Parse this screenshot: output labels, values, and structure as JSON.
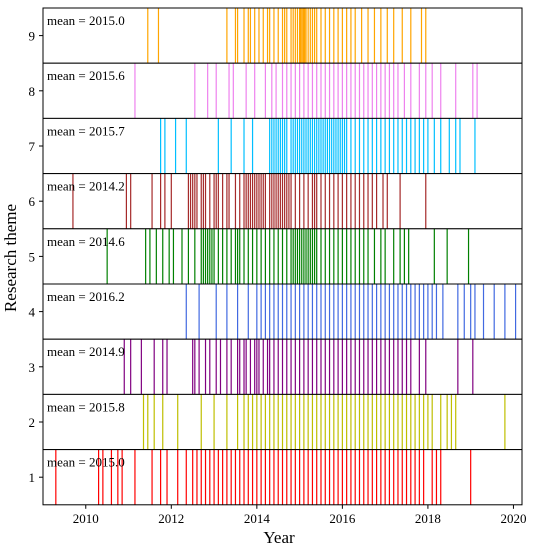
{
  "chart_data": {
    "type": "event-strip",
    "xlabel": "Year",
    "ylabel": "Research theme",
    "xlim": [
      2009.0,
      2020.2
    ],
    "xticks": [
      2010,
      2012,
      2014,
      2016,
      2018,
      2020
    ],
    "panels": [
      {
        "theme": "9",
        "mean_label": "mean = 2015.0",
        "color": "#FFA500",
        "events": [
          2011.45,
          2011.7,
          2013.3,
          2013.5,
          2013.55,
          2013.7,
          2013.8,
          2013.85,
          2013.95,
          2014.05,
          2014.15,
          2014.25,
          2014.3,
          2014.4,
          2014.5,
          2014.6,
          2014.65,
          2014.7,
          2014.8,
          2014.85,
          2014.9,
          2014.95,
          2015.0,
          2015.02,
          2015.05,
          2015.08,
          2015.1,
          2015.12,
          2015.15,
          2015.2,
          2015.25,
          2015.3,
          2015.35,
          2015.4,
          2015.5,
          2015.6,
          2015.7,
          2015.8,
          2015.9,
          2016.0,
          2016.1,
          2016.2,
          2016.3,
          2016.45,
          2016.6,
          2016.75,
          2016.9,
          2017.05,
          2017.2,
          2017.4,
          2017.6,
          2017.85,
          2017.95
        ]
      },
      {
        "theme": "8",
        "mean_label": "mean = 2015.6",
        "color": "#EE82EE",
        "events": [
          2011.15,
          2012.55,
          2012.85,
          2013.05,
          2013.35,
          2013.45,
          2013.75,
          2013.95,
          2014.2,
          2014.35,
          2014.45,
          2014.6,
          2014.7,
          2014.8,
          2014.9,
          2015.0,
          2015.1,
          2015.2,
          2015.3,
          2015.4,
          2015.5,
          2015.6,
          2015.7,
          2015.8,
          2015.9,
          2016.0,
          2016.1,
          2016.2,
          2016.3,
          2016.4,
          2016.5,
          2016.6,
          2016.7,
          2016.8,
          2016.9,
          2017.0,
          2017.1,
          2017.2,
          2017.3,
          2017.45,
          2017.6,
          2017.8,
          2017.95,
          2018.1,
          2018.3,
          2018.65,
          2019.05,
          2019.15
        ]
      },
      {
        "theme": "7",
        "mean_label": "mean = 2015.7",
        "color": "#00BFFF",
        "events": [
          2011.75,
          2011.85,
          2012.1,
          2012.35,
          2013.1,
          2013.4,
          2013.7,
          2013.9,
          2014.3,
          2014.35,
          2014.4,
          2014.45,
          2014.5,
          2014.55,
          2014.6,
          2014.65,
          2014.7,
          2014.8,
          2014.85,
          2014.9,
          2014.95,
          2015.0,
          2015.05,
          2015.1,
          2015.15,
          2015.2,
          2015.25,
          2015.3,
          2015.35,
          2015.4,
          2015.45,
          2015.5,
          2015.55,
          2015.6,
          2015.65,
          2015.7,
          2015.75,
          2015.8,
          2015.85,
          2015.9,
          2015.95,
          2016.0,
          2016.05,
          2016.1,
          2016.2,
          2016.3,
          2016.4,
          2016.5,
          2016.6,
          2016.7,
          2016.8,
          2016.9,
          2017.0,
          2017.1,
          2017.2,
          2017.3,
          2017.4,
          2017.5,
          2017.6,
          2017.7,
          2017.8,
          2017.9,
          2018.0,
          2018.15,
          2018.3,
          2018.5,
          2018.65,
          2018.75,
          2019.1
        ]
      },
      {
        "theme": "6",
        "mean_label": "mean = 2014.2",
        "color": "#A52A2A",
        "events": [
          2009.7,
          2010.95,
          2011.05,
          2011.55,
          2011.75,
          2011.85,
          2012.0,
          2012.4,
          2012.45,
          2012.5,
          2012.55,
          2012.6,
          2012.7,
          2012.75,
          2012.8,
          2012.9,
          2013.0,
          2013.05,
          2013.1,
          2013.2,
          2013.3,
          2013.35,
          2013.5,
          2013.6,
          2013.7,
          2013.75,
          2013.8,
          2013.85,
          2013.9,
          2013.95,
          2014.0,
          2014.05,
          2014.1,
          2014.15,
          2014.2,
          2014.3,
          2014.35,
          2014.4,
          2014.45,
          2014.5,
          2014.55,
          2014.6,
          2014.65,
          2014.7,
          2014.75,
          2014.8,
          2014.9,
          2015.0,
          2015.1,
          2015.2,
          2015.3,
          2015.35,
          2015.4,
          2015.5,
          2015.6,
          2015.7,
          2015.8,
          2015.9,
          2016.0,
          2016.1,
          2016.2,
          2016.3,
          2016.4,
          2016.5,
          2016.6,
          2016.7,
          2016.8,
          2016.95,
          2017.05,
          2017.35,
          2017.95
        ]
      },
      {
        "theme": "5",
        "mean_label": "mean = 2014.6",
        "color": "#008000",
        "events": [
          2010.5,
          2011.4,
          2011.5,
          2011.65,
          2011.8,
          2011.95,
          2012.05,
          2012.25,
          2012.4,
          2012.55,
          2012.7,
          2012.75,
          2012.8,
          2012.85,
          2012.9,
          2012.95,
          2013.0,
          2013.1,
          2013.2,
          2013.3,
          2013.4,
          2013.5,
          2013.55,
          2013.6,
          2013.7,
          2013.8,
          2013.9,
          2014.0,
          2014.1,
          2014.2,
          2014.3,
          2014.4,
          2014.5,
          2014.6,
          2014.7,
          2014.8,
          2014.85,
          2014.9,
          2014.95,
          2015.0,
          2015.05,
          2015.1,
          2015.15,
          2015.2,
          2015.25,
          2015.3,
          2015.35,
          2015.4,
          2015.5,
          2015.6,
          2015.7,
          2015.8,
          2015.9,
          2016.0,
          2016.1,
          2016.2,
          2016.3,
          2016.4,
          2016.5,
          2016.6,
          2016.75,
          2016.9,
          2017.0,
          2017.2,
          2017.35,
          2017.45,
          2017.55,
          2018.15,
          2018.45,
          2018.95
        ]
      },
      {
        "theme": "4",
        "mean_label": "mean = 2016.2",
        "color": "#4169E1",
        "events": [
          2012.35,
          2012.65,
          2013.05,
          2013.3,
          2013.55,
          2013.8,
          2014.0,
          2014.1,
          2014.2,
          2014.3,
          2014.4,
          2014.5,
          2014.6,
          2014.7,
          2014.8,
          2014.9,
          2015.0,
          2015.1,
          2015.2,
          2015.3,
          2015.4,
          2015.5,
          2015.6,
          2015.7,
          2015.8,
          2015.9,
          2016.0,
          2016.1,
          2016.2,
          2016.3,
          2016.4,
          2016.5,
          2016.6,
          2016.7,
          2016.8,
          2016.9,
          2017.0,
          2017.1,
          2017.2,
          2017.3,
          2017.4,
          2017.5,
          2017.6,
          2017.7,
          2017.8,
          2017.9,
          2018.0,
          2018.1,
          2018.2,
          2018.35,
          2018.7,
          2018.85,
          2019.0,
          2019.1,
          2019.3,
          2019.55,
          2019.8,
          2020.05
        ]
      },
      {
        "theme": "3",
        "mean_label": "mean = 2014.9",
        "color": "#800080",
        "events": [
          2010.9,
          2011.05,
          2011.3,
          2011.6,
          2011.8,
          2011.9,
          2012.5,
          2012.55,
          2012.65,
          2012.8,
          2012.9,
          2013.05,
          2013.15,
          2013.3,
          2013.4,
          2013.55,
          2013.6,
          2013.7,
          2013.75,
          2013.85,
          2013.95,
          2014.0,
          2014.05,
          2014.15,
          2014.25,
          2014.3,
          2014.4,
          2014.5,
          2014.6,
          2014.7,
          2014.8,
          2014.9,
          2015.0,
          2015.1,
          2015.2,
          2015.3,
          2015.4,
          2015.5,
          2015.6,
          2015.7,
          2015.8,
          2015.9,
          2016.0,
          2016.1,
          2016.2,
          2016.3,
          2016.4,
          2016.5,
          2016.6,
          2016.7,
          2016.8,
          2016.9,
          2017.0,
          2017.1,
          2017.2,
          2017.3,
          2017.4,
          2017.5,
          2017.6,
          2017.8,
          2017.95,
          2018.7,
          2019.05
        ]
      },
      {
        "theme": "2",
        "mean_label": "mean = 2015.8",
        "color": "#BFBF00",
        "events": [
          2011.35,
          2011.45,
          2011.6,
          2011.8,
          2012.15,
          2012.7,
          2013.0,
          2013.3,
          2013.55,
          2013.7,
          2013.8,
          2013.9,
          2014.0,
          2014.1,
          2014.2,
          2014.3,
          2014.4,
          2014.5,
          2014.6,
          2014.7,
          2014.8,
          2014.9,
          2015.0,
          2015.1,
          2015.2,
          2015.3,
          2015.4,
          2015.5,
          2015.6,
          2015.7,
          2015.8,
          2015.9,
          2016.0,
          2016.1,
          2016.2,
          2016.3,
          2016.4,
          2016.5,
          2016.6,
          2016.7,
          2016.8,
          2016.9,
          2017.0,
          2017.1,
          2017.2,
          2017.3,
          2017.4,
          2017.5,
          2017.6,
          2017.7,
          2017.8,
          2017.9,
          2018.0,
          2018.1,
          2018.3,
          2018.45,
          2018.55,
          2018.65,
          2019.8
        ]
      },
      {
        "theme": "1",
        "mean_label": "mean = 2015.0",
        "color": "#FF0000",
        "events": [
          2009.3,
          2010.3,
          2010.4,
          2010.6,
          2010.75,
          2010.85,
          2011.15,
          2011.55,
          2011.75,
          2011.9,
          2012.15,
          2012.35,
          2012.5,
          2012.6,
          2012.7,
          2012.8,
          2012.9,
          2013.0,
          2013.1,
          2013.2,
          2013.3,
          2013.4,
          2013.5,
          2013.6,
          2013.7,
          2013.8,
          2013.9,
          2014.0,
          2014.1,
          2014.2,
          2014.3,
          2014.4,
          2014.5,
          2014.6,
          2014.7,
          2014.8,
          2014.9,
          2015.0,
          2015.1,
          2015.2,
          2015.3,
          2015.4,
          2015.5,
          2015.6,
          2015.7,
          2015.8,
          2015.9,
          2016.0,
          2016.1,
          2016.2,
          2016.3,
          2016.4,
          2016.5,
          2016.6,
          2016.7,
          2016.8,
          2016.9,
          2017.0,
          2017.1,
          2017.2,
          2017.3,
          2017.4,
          2017.5,
          2017.6,
          2017.7,
          2017.8,
          2017.9,
          2018.1,
          2018.2,
          2018.3,
          2019.0
        ]
      }
    ]
  }
}
